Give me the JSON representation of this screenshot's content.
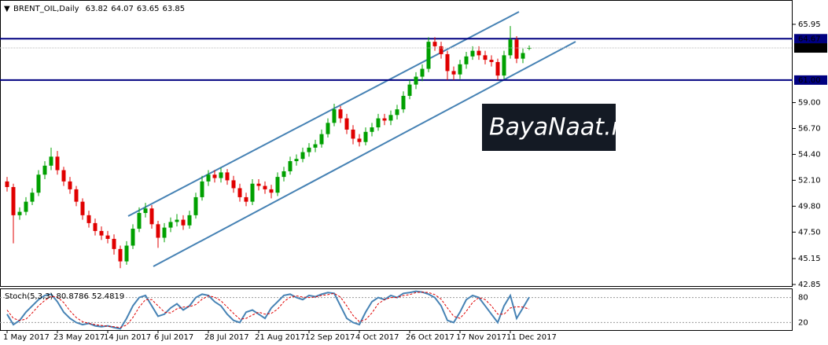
{
  "chart_data": [
    {
      "type": "candlestick",
      "symbol": "BRENT_OIL,Daily",
      "watermark": "BayaNaat.net",
      "categories": [
        "1 May 2017",
        null,
        null,
        null,
        null,
        null,
        null,
        null,
        "23 May 2017",
        null,
        null,
        null,
        null,
        null,
        null,
        null,
        "14 Jun 2017",
        null,
        null,
        null,
        null,
        null,
        null,
        null,
        "6 Jul 2017",
        null,
        null,
        null,
        null,
        null,
        null,
        null,
        "28 Jul 2017",
        null,
        null,
        null,
        null,
        null,
        null,
        null,
        "21 Aug 2017",
        null,
        null,
        null,
        null,
        null,
        null,
        null,
        "12 Sep 2017",
        null,
        null,
        null,
        null,
        null,
        null,
        null,
        "4 Oct 2017",
        null,
        null,
        null,
        null,
        null,
        null,
        null,
        "26 Oct 2017",
        null,
        null,
        null,
        null,
        null,
        null,
        null,
        "17 Nov 2017",
        null,
        null,
        null,
        null,
        null,
        null,
        null,
        "11 Dec 2017",
        null,
        null,
        null
      ],
      "open": [
        52.0,
        51.5,
        49.0,
        49.3,
        50.2,
        51.0,
        52.6,
        53.4,
        54.2,
        53.0,
        52.0,
        51.3,
        50.2,
        49.0,
        48.3,
        47.6,
        47.2,
        46.9,
        46.0,
        44.9,
        46.3,
        47.8,
        49.2,
        49.6,
        48.2,
        47.0,
        47.9,
        48.4,
        48.6,
        48.1,
        49.0,
        50.6,
        52.0,
        52.6,
        52.3,
        52.8,
        52.1,
        51.4,
        50.6,
        50.2,
        51.8,
        51.6,
        51.3,
        51.0,
        52.4,
        52.9,
        53.8,
        54.0,
        54.6,
        55.0,
        55.3,
        56.2,
        57.2,
        58.4,
        57.6,
        56.6,
        55.8,
        55.5,
        56.4,
        56.8,
        57.6,
        57.4,
        57.9,
        58.4,
        59.6,
        60.6,
        61.3,
        62.0,
        64.4,
        64.0,
        63.3,
        61.8,
        61.5,
        62.4,
        63.1,
        63.6,
        63.2,
        62.8,
        62.6,
        61.4,
        63.2,
        64.6,
        62.9,
        63.82
      ],
      "high": [
        52.4,
        51.8,
        49.7,
        50.6,
        51.4,
        53.0,
        53.8,
        55.0,
        54.7,
        53.3,
        52.4,
        51.6,
        50.5,
        49.4,
        48.7,
        48.0,
        47.6,
        47.3,
        46.3,
        46.7,
        48.2,
        49.7,
        50.1,
        49.9,
        48.5,
        48.3,
        48.8,
        49.1,
        49.0,
        49.4,
        51.0,
        52.5,
        53.0,
        53.0,
        53.2,
        53.1,
        52.5,
        51.8,
        51.0,
        52.2,
        52.2,
        52.0,
        51.7,
        52.8,
        53.3,
        54.2,
        54.4,
        55.0,
        55.4,
        55.7,
        56.6,
        57.6,
        58.9,
        58.7,
        58.0,
        57.0,
        56.2,
        56.8,
        57.2,
        58.0,
        58.0,
        58.3,
        58.8,
        60.0,
        61.0,
        61.7,
        62.4,
        64.8,
        64.8,
        64.4,
        63.6,
        62.2,
        62.8,
        63.5,
        64.0,
        64.0,
        63.6,
        63.2,
        62.9,
        63.6,
        65.8,
        64.9,
        63.8,
        64.07
      ],
      "low": [
        51.1,
        46.5,
        48.6,
        49.0,
        49.9,
        50.7,
        52.2,
        53.0,
        52.6,
        51.6,
        50.9,
        49.8,
        48.6,
        47.9,
        47.2,
        46.8,
        46.5,
        45.5,
        44.3,
        44.6,
        46.0,
        47.5,
        48.8,
        47.8,
        46.1,
        46.6,
        47.5,
        48.0,
        47.7,
        47.8,
        48.7,
        50.3,
        51.6,
        51.9,
        51.9,
        51.7,
        51.0,
        50.2,
        49.8,
        49.9,
        51.2,
        50.9,
        50.5,
        50.7,
        52.0,
        52.6,
        53.4,
        53.7,
        54.2,
        54.6,
        55.0,
        55.9,
        56.9,
        57.2,
        56.2,
        55.3,
        55.1,
        55.2,
        56.0,
        56.5,
        57.0,
        57.0,
        57.5,
        58.1,
        59.3,
        60.2,
        60.9,
        61.7,
        63.6,
        62.9,
        61.0,
        61.0,
        61.1,
        62.0,
        62.8,
        62.8,
        62.4,
        62.2,
        61.0,
        61.1,
        62.9,
        62.5,
        62.5,
        63.65
      ],
      "close": [
        51.5,
        49.0,
        49.3,
        50.2,
        51.0,
        52.6,
        53.4,
        54.2,
        53.0,
        52.0,
        51.3,
        50.2,
        49.0,
        48.3,
        47.6,
        47.2,
        46.9,
        46.0,
        44.9,
        46.3,
        47.8,
        49.2,
        49.6,
        48.2,
        47.0,
        47.9,
        48.4,
        48.6,
        48.1,
        49.0,
        50.6,
        52.0,
        52.6,
        52.3,
        52.8,
        52.1,
        51.4,
        50.6,
        50.2,
        51.8,
        51.6,
        51.3,
        51.0,
        52.4,
        52.9,
        53.8,
        54.0,
        54.6,
        55.0,
        55.3,
        56.2,
        57.2,
        58.4,
        57.6,
        56.6,
        55.8,
        55.5,
        56.4,
        56.8,
        57.6,
        57.4,
        57.9,
        58.4,
        59.6,
        60.6,
        61.3,
        62.0,
        64.4,
        64.0,
        63.3,
        61.8,
        61.5,
        62.4,
        63.1,
        63.6,
        63.2,
        62.8,
        62.6,
        61.4,
        63.2,
        64.6,
        62.9,
        63.4,
        63.85
      ],
      "up_color": "#00a000",
      "down_color": "#e00000",
      "ylim": [
        42.64,
        67.76
      ],
      "yticks": [
        65.95,
        {
          "value": 59,
          "label": "59.00"
        },
        {
          "value": 56.7,
          "label": "56.70"
        },
        {
          "value": 54.4,
          "label": "54.40"
        },
        {
          "value": 52.1,
          "label": "52.10"
        },
        {
          "value": 49.8,
          "label": "49.80"
        },
        {
          "value": 47.5,
          "label": "47.50"
        },
        45.15,
        42.85
      ],
      "levels": [
        {
          "value": 64.67,
          "color": "#000080"
        },
        {
          "value": 61,
          "label": "61.00",
          "color": "#000080"
        }
      ],
      "grid": false
    },
    {
      "type": "stochastic",
      "title": "Stoch(5,3,3)",
      "ylim": [
        0,
        100
      ],
      "yticks": [
        80,
        20
      ],
      "series": [
        {
          "color": "#4682b4",
          "values": [
            40,
            15,
            25,
            45,
            60,
            75,
            85,
            88,
            70,
            45,
            30,
            20,
            15,
            18,
            12,
            10,
            12,
            8,
            5,
            30,
            60,
            80,
            85,
            60,
            35,
            40,
            55,
            65,
            50,
            60,
            80,
            88,
            85,
            70,
            60,
            40,
            25,
            20,
            45,
            50,
            40,
            30,
            55,
            70,
            85,
            88,
            80,
            75,
            85,
            82,
            88,
            92,
            90,
            60,
            30,
            20,
            15,
            45,
            70,
            80,
            75,
            85,
            80,
            90,
            92,
            95,
            93,
            88,
            80,
            60,
            25,
            20,
            45,
            75,
            85,
            80,
            60,
            40,
            20,
            60,
            85,
            30,
            55,
            80.8786
          ]
        },
        {
          "color": "#e00000",
          "values": [
            50,
            30,
            25,
            28,
            43,
            60,
            73,
            83,
            81,
            68,
            48,
            32,
            22,
            18,
            15,
            13,
            11,
            10,
            8,
            14,
            32,
            57,
            75,
            75,
            60,
            45,
            43,
            53,
            57,
            58,
            63,
            76,
            84,
            81,
            72,
            57,
            42,
            28,
            30,
            38,
            45,
            40,
            42,
            52,
            70,
            81,
            84,
            81,
            80,
            81,
            85,
            87,
            90,
            81,
            60,
            37,
            22,
            27,
            43,
            65,
            75,
            80,
            80,
            85,
            87,
            92,
            93,
            92,
            87,
            76,
            55,
            35,
            30,
            47,
            68,
            80,
            75,
            60,
            40,
            40,
            55,
            58,
            57,
            52.4819
          ]
        }
      ]
    }
  ]
}
